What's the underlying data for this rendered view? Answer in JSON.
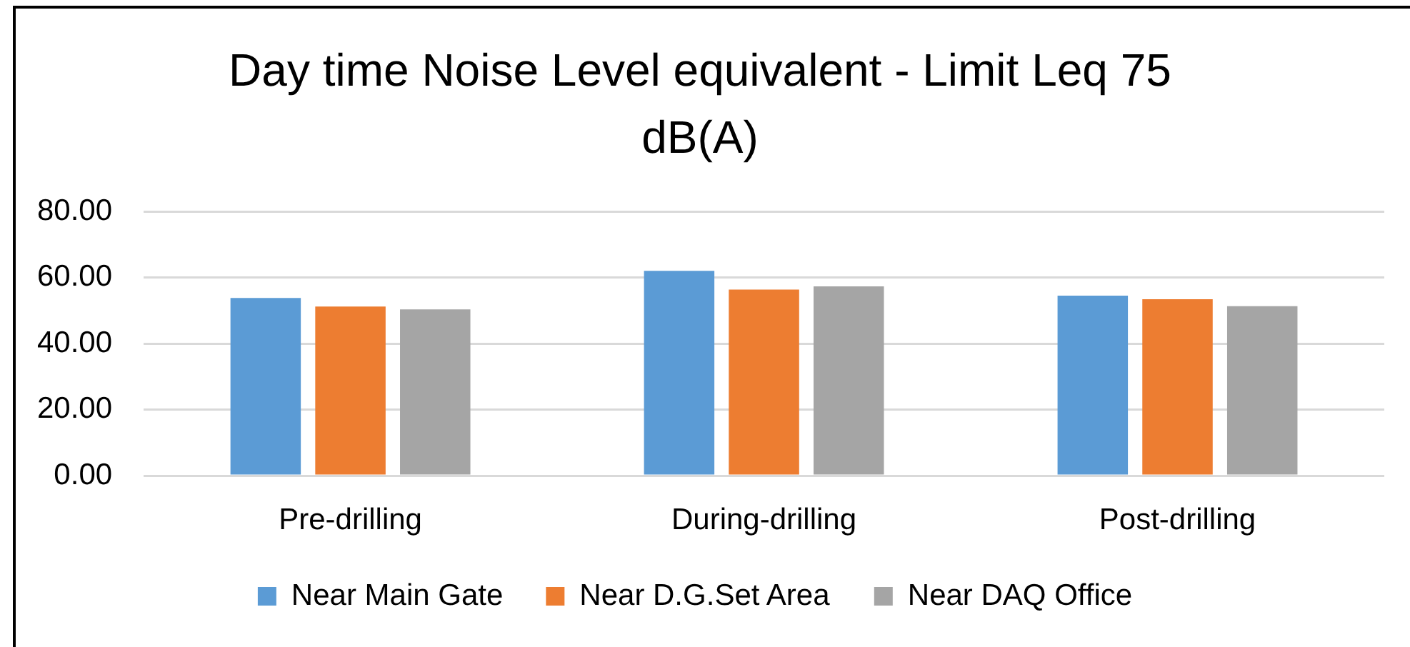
{
  "chart_data": {
    "type": "bar",
    "title": "Day time Noise Level equivalent - Limit Leq 75 dB(A)",
    "categories": [
      "Pre-drilling",
      "During-drilling",
      "Post-drilling"
    ],
    "series": [
      {
        "name": "Near Main Gate",
        "color": "#5b9bd5",
        "values": [
          53.8,
          62.0,
          54.5
        ]
      },
      {
        "name": "Near D.G.Set Area",
        "color": "#ed7d31",
        "values": [
          51.2,
          56.3,
          53.4
        ]
      },
      {
        "name": "Near DAQ Office",
        "color": "#a5a5a5",
        "values": [
          50.3,
          57.3,
          51.3
        ]
      }
    ],
    "ylim": [
      0,
      80
    ],
    "yticks": [
      {
        "value": 0,
        "label": "0.00"
      },
      {
        "value": 20,
        "label": "20.00"
      },
      {
        "value": 40,
        "label": "40.00"
      },
      {
        "value": 60,
        "label": "60.00"
      },
      {
        "value": 80,
        "label": "80.00"
      }
    ],
    "grid": "y",
    "legend": "bottom"
  }
}
